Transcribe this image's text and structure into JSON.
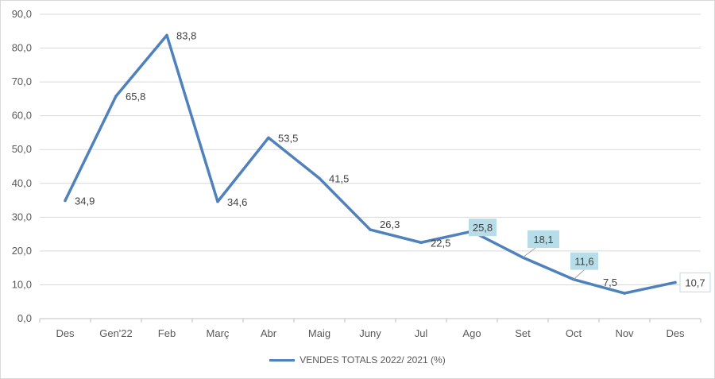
{
  "chart_data": {
    "type": "line",
    "categories": [
      "Des",
      "Gen'22",
      "Feb",
      "Març",
      "Abr",
      "Maig",
      "Juny",
      "Jul",
      "Ago",
      "Set",
      "Oct",
      "Nov",
      "Des"
    ],
    "series": [
      {
        "name": "VENDES TOTALS 2022/ 2021 (%)",
        "values": [
          34.9,
          65.8,
          83.8,
          34.6,
          53.5,
          41.5,
          26.3,
          22.5,
          25.8,
          18.1,
          11.6,
          7.5,
          10.7
        ],
        "labels": [
          "34,9",
          "65,8",
          "83,8",
          "34,6",
          "53,5",
          "41,5",
          "26,3",
          "22,5",
          "25,8",
          "18,1",
          "11,6",
          "7,5",
          "10,7"
        ],
        "color": "#4f81bd"
      }
    ],
    "y_ticks": [
      "0,0",
      "10,0",
      "20,0",
      "30,0",
      "40,0",
      "50,0",
      "60,0",
      "70,0",
      "80,0",
      "90,0"
    ],
    "ylim": [
      0,
      90
    ],
    "grid": true,
    "legend_position": "bottom",
    "highlight_fill": "#b7dee8",
    "boxed_label_border": "#b7dee8"
  }
}
